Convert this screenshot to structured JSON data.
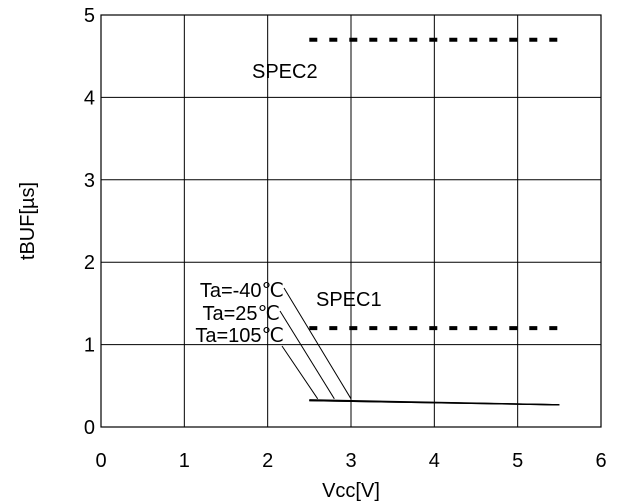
{
  "chart_data": {
    "type": "line",
    "title": "",
    "xlabel": "Vcc[V]",
    "ylabel": "tBUF[µs]",
    "xlim": [
      0,
      6
    ],
    "ylim": [
      0,
      5
    ],
    "x_ticks": [
      "0",
      "1",
      "2",
      "3",
      "4",
      "5",
      "6"
    ],
    "y_ticks": [
      "0",
      "1",
      "2",
      "3",
      "4",
      "5"
    ],
    "grid": true,
    "series": [
      {
        "name": "Ta=-40℃",
        "x": [
          2.5,
          5.5
        ],
        "y": [
          0.33,
          0.27
        ],
        "style": "solid"
      },
      {
        "name": "Ta=25℃",
        "x": [
          2.5,
          5.5
        ],
        "y": [
          0.32,
          0.27
        ],
        "style": "solid"
      },
      {
        "name": "Ta=105℃",
        "x": [
          2.5,
          5.5
        ],
        "y": [
          0.32,
          0.27
        ],
        "style": "solid"
      },
      {
        "name": "SPEC1",
        "x": [
          2.5,
          5.5
        ],
        "y": [
          1.2,
          1.2
        ],
        "style": "dotted"
      },
      {
        "name": "SPEC2",
        "x": [
          2.5,
          5.5
        ],
        "y": [
          4.7,
          4.7
        ],
        "style": "dotted"
      }
    ],
    "annotations": [
      {
        "text": "Ta=-40℃",
        "target": "Ta=-40℃",
        "x": 3.0,
        "y": 0.33
      },
      {
        "text": "Ta=25℃",
        "target": "Ta=25℃",
        "x": 2.8,
        "y": 0.33
      },
      {
        "text": "Ta=105℃",
        "target": "Ta=105℃",
        "x": 2.6,
        "y": 0.33
      },
      {
        "text": "SPEC1",
        "x": 3.35,
        "y": 1.45
      },
      {
        "text": "SPEC2",
        "x": 2.7,
        "y": 4.3
      }
    ]
  }
}
